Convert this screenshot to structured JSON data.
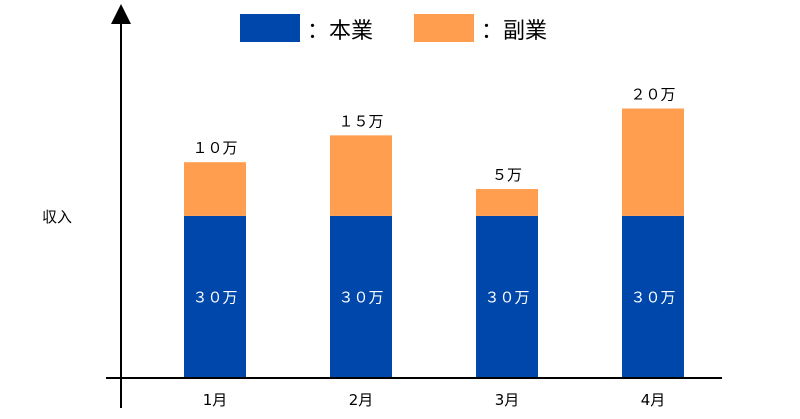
{
  "chart_data": {
    "type": "bar",
    "stacked": true,
    "ylabel": "収入",
    "categories": [
      "1月",
      "2月",
      "3月",
      "4月"
    ],
    "series": [
      {
        "name": "本業",
        "color": "#0047AB",
        "values": [
          30,
          30,
          30,
          30
        ],
        "labels": [
          "３０万",
          "３０万",
          "３０万",
          "３０万"
        ]
      },
      {
        "name": "副業",
        "color": "#FF9E4F",
        "values": [
          10,
          15,
          5,
          20
        ],
        "labels": [
          "１０万",
          "１５万",
          "５万",
          "２０万"
        ]
      }
    ],
    "legend": [
      {
        "marker": "：",
        "name": "本業",
        "color": "#0047AB"
      },
      {
        "marker": "：",
        "name": "副業",
        "color": "#FF9E4F"
      }
    ],
    "legend_position": "top",
    "grid": false
  }
}
